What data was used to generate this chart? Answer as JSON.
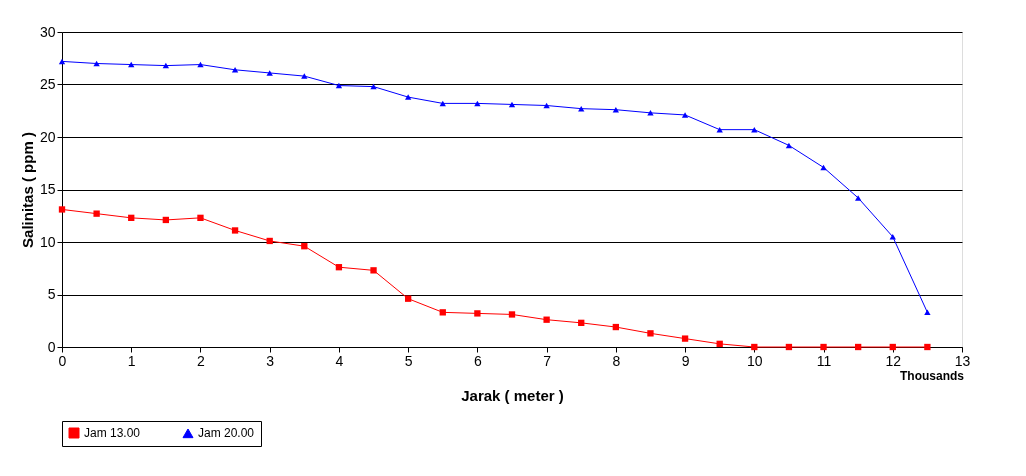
{
  "chart_data": {
    "type": "line",
    "xlabel": "Jarak ( meter )",
    "ylabel": "Salinitas ( ppm )",
    "x": [
      0,
      0.5,
      1,
      1.5,
      2,
      2.5,
      3,
      3.5,
      4,
      4.5,
      5,
      5.5,
      6,
      6.5,
      7,
      7.5,
      8,
      8.5,
      9,
      9.5,
      10,
      10.5,
      11,
      11.5,
      12,
      12.5
    ],
    "series": [
      {
        "name": "Jam 13.00",
        "color": "#ff0000",
        "marker": "square",
        "values": [
          13.1,
          12.7,
          12.3,
          12.1,
          12.3,
          11.1,
          10.1,
          9.6,
          7.6,
          7.3,
          4.6,
          3.3,
          3.2,
          3.1,
          2.6,
          2.3,
          1.9,
          1.3,
          0.8,
          0.3,
          0,
          0,
          0,
          0,
          0,
          0
        ]
      },
      {
        "name": "Jam 20.00",
        "color": "#0000ff",
        "marker": "triangle",
        "values": [
          27.2,
          27.0,
          26.9,
          26.8,
          26.9,
          26.4,
          26.1,
          25.8,
          24.9,
          24.8,
          23.8,
          23.2,
          23.2,
          23.1,
          23.0,
          22.7,
          22.6,
          22.3,
          22.1,
          20.7,
          20.7,
          19.2,
          17.1,
          14.2,
          10.5,
          3.3
        ]
      }
    ],
    "xlim": [
      0,
      13
    ],
    "xticks": [
      0,
      1,
      2,
      3,
      4,
      5,
      6,
      7,
      8,
      9,
      10,
      11,
      12,
      13
    ],
    "ylim": [
      0,
      30
    ],
    "yticks": [
      0,
      5,
      10,
      15,
      20,
      25,
      30
    ],
    "grid": "y",
    "legend": "bottom left",
    "line_style": "solid",
    "annotations": [
      "Thousands"
    ]
  }
}
